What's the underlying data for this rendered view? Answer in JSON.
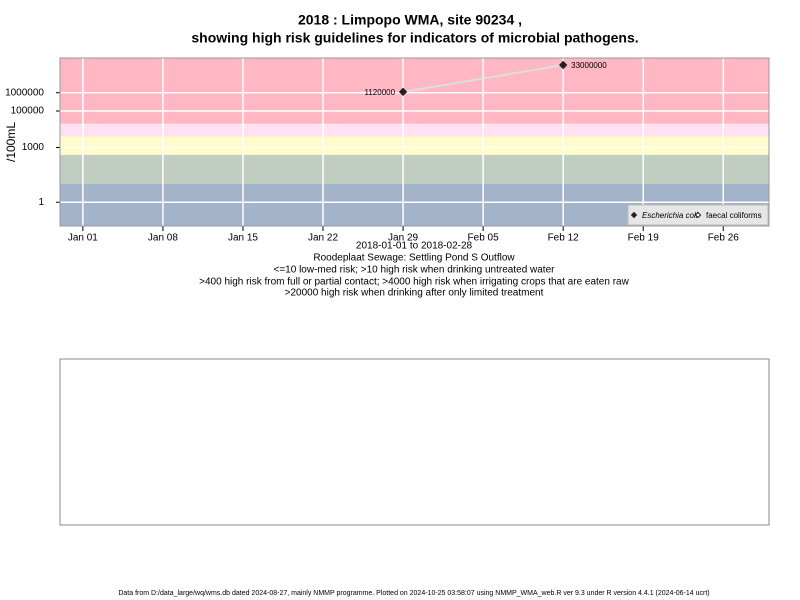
{
  "chart_data": {
    "type": "line",
    "title": "2018 : Limpopo WMA, site 90234 ,",
    "subtitle": "showing high risk guidelines for indicators of microbial pathogens.",
    "y_label": "/100mL",
    "x_label": "2018-01-01 to 2018-02-28",
    "site_name": "Roodeplaat Sewage: Settling Pond S Outflow",
    "notes": [
      "<=10 low-med risk; >10 high risk when drinking untreated water",
      ">400 high risk from full or partial contact; >4000 high risk when irrigating crops that are eaten raw",
      ">20000 high risk when drinking after only limited treatment"
    ],
    "footer": "Data from D:/data_large/wq/wms.db dated 2024-08-27, mainly NMMP programme. Plotted on 2024-10-25 03:58:07 using NMMP_WMA_web.R ver 9.3 under R version 4.4.1 (2024-06-14 ucrt)",
    "log_scale": true,
    "grid": true,
    "legend_position": "bottom-right",
    "xlim": [
      "2017-12-30",
      "2018-03-02"
    ],
    "xticks": [
      {
        "value": "2018-01-01",
        "label": "Jan 01"
      },
      {
        "value": "2018-01-08",
        "label": "Jan 08"
      },
      {
        "value": "2018-01-15",
        "label": "Jan 15"
      },
      {
        "value": "2018-01-22",
        "label": "Jan 22"
      },
      {
        "value": "2018-01-29",
        "label": "Jan 29"
      },
      {
        "value": "2018-02-05",
        "label": "Feb 05"
      },
      {
        "value": "2018-02-12",
        "label": "Feb 12"
      },
      {
        "value": "2018-02-19",
        "label": "Feb 19"
      },
      {
        "value": "2018-02-26",
        "label": "Feb 26"
      }
    ],
    "ylim": [
      0.05,
      80000000
    ],
    "yticks": [
      1,
      1000,
      100000,
      1000000
    ],
    "risk_bands": [
      {
        "from": 0.05,
        "to": 10,
        "color": "#a3b3c9"
      },
      {
        "from": 10,
        "to": 400,
        "color": "#c2cdc2"
      },
      {
        "from": 400,
        "to": 4000,
        "color": "#fffccc"
      },
      {
        "from": 4000,
        "to": 20000,
        "color": "#ffe1f2"
      },
      {
        "from": 20000,
        "to": 80000000,
        "color": "#ffb7c3"
      }
    ],
    "line_color": "#dddddd",
    "series": [
      {
        "name": "Escherichia coli",
        "marker": "filled",
        "color": "#222222",
        "x": [
          "2018-01-29",
          "2018-02-12"
        ],
        "values": [
          1120000,
          33000000
        ]
      },
      {
        "name": "faecal coliforms",
        "marker": "open",
        "color": "#222222",
        "x": [],
        "values": []
      }
    ]
  }
}
